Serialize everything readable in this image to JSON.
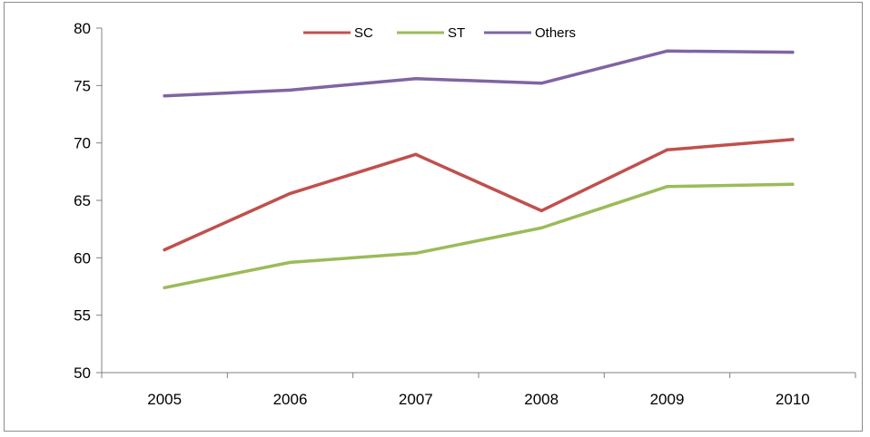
{
  "chart_data": {
    "type": "line",
    "categories": [
      "2005",
      "2006",
      "2007",
      "2008",
      "2009",
      "2010"
    ],
    "series": [
      {
        "name": "SC",
        "color": "#c0504d",
        "values": [
          60.7,
          65.6,
          69.0,
          64.1,
          69.4,
          70.3
        ]
      },
      {
        "name": "ST",
        "color": "#9bbb59",
        "values": [
          57.4,
          59.6,
          60.4,
          62.6,
          66.2,
          66.4
        ]
      },
      {
        "name": "Others",
        "color": "#8064a2",
        "values": [
          74.1,
          74.6,
          75.6,
          75.2,
          78.0,
          77.9
        ]
      }
    ],
    "yticks": [
      "50",
      "55",
      "60",
      "65",
      "70",
      "75",
      "80"
    ],
    "ylim": [
      50,
      80
    ],
    "grid": false,
    "legend_position": "top-center",
    "title": "",
    "xlabel": "",
    "ylabel": ""
  }
}
